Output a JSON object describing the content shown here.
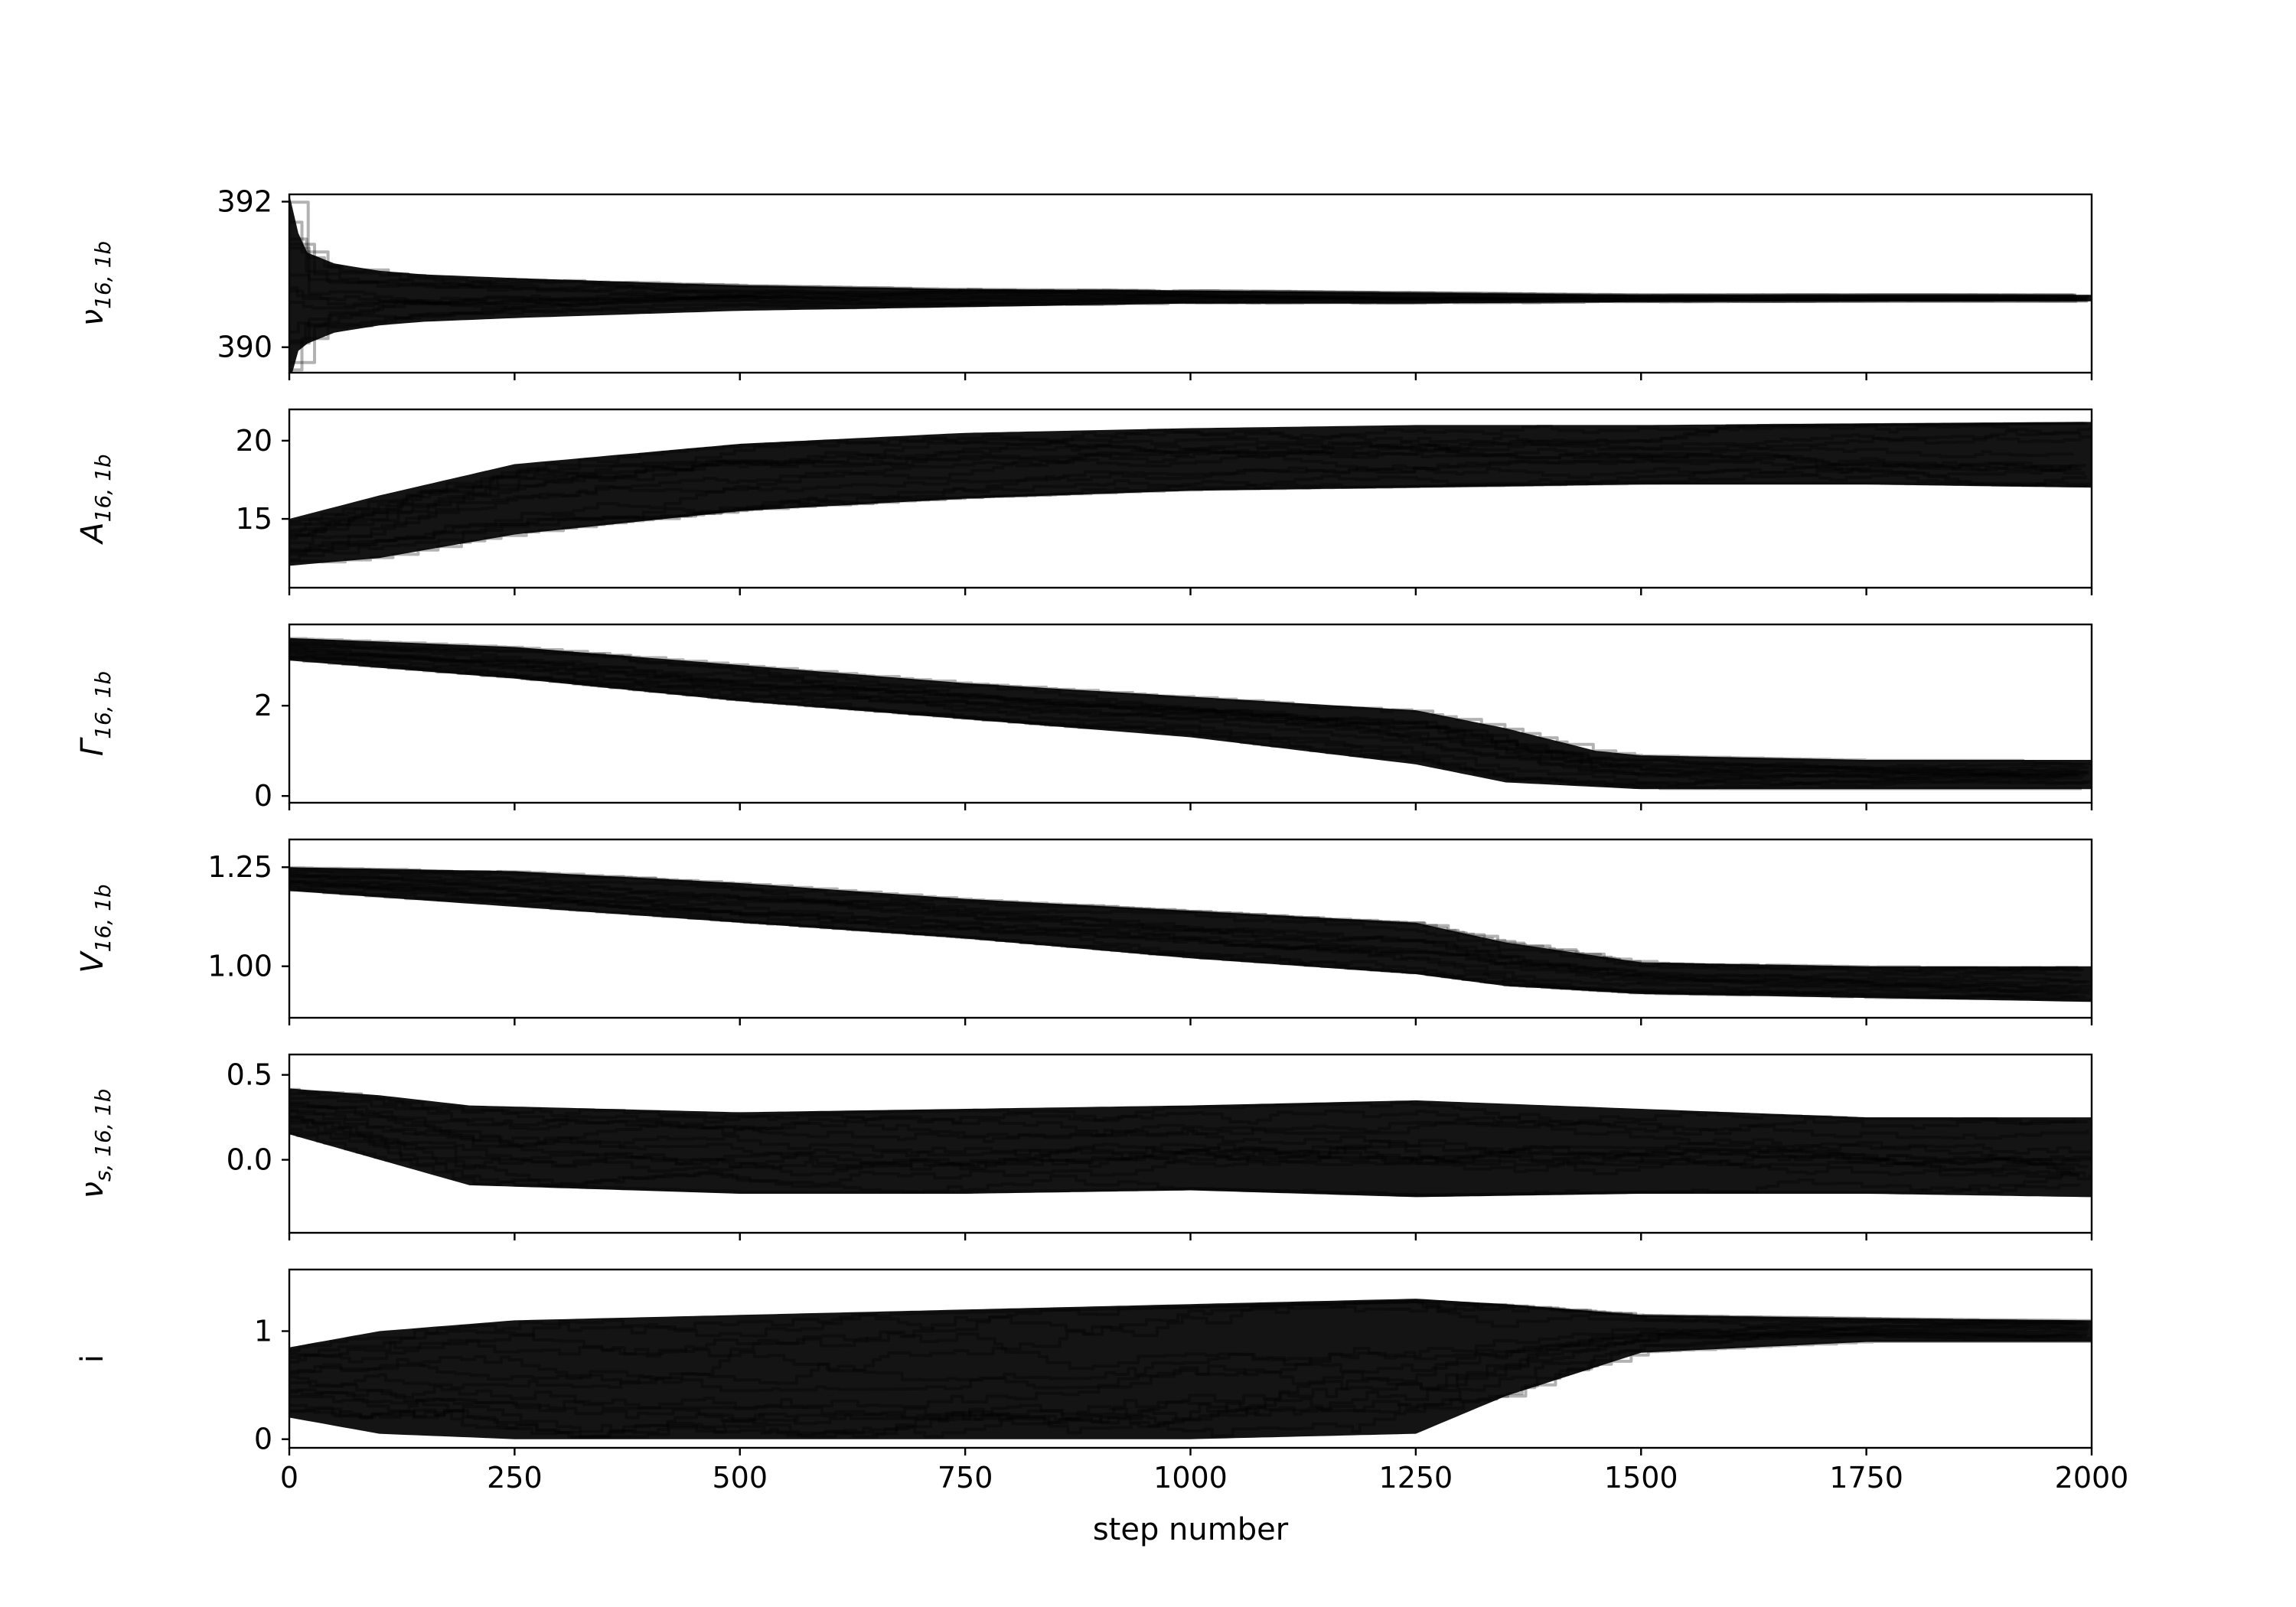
{
  "chart_data": {
    "type": "line",
    "layout": "stacked-subplots",
    "x": {
      "label": "step number",
      "range": [
        0,
        2000
      ],
      "ticks": [
        0,
        250,
        500,
        750,
        1000,
        1250,
        1500,
        1750,
        2000
      ],
      "tick_labels": [
        "0",
        "250",
        "500",
        "750",
        "1000",
        "1250",
        "1500",
        "1750",
        "2000"
      ]
    },
    "style": {
      "band_color": "#000000",
      "walker_color": "#000000",
      "walker_alpha": 0.3,
      "background": "#ffffff"
    },
    "panels": [
      {
        "ylabel": "ν16,1b",
        "ylabel_main": "ν",
        "ylabel_sub": "16, 1b",
        "ylim": [
          389.65,
          392.1
        ],
        "yticks": [
          390,
          392
        ],
        "ytick_labels": [
          "390",
          "392"
        ],
        "envelope": {
          "x": [
            0,
            5,
            20,
            50,
            100,
            150,
            250,
            500,
            750,
            1000,
            1250,
            1500,
            1750,
            2000
          ],
          "lower": [
            389.5,
            389.9,
            390.05,
            390.2,
            390.3,
            390.35,
            390.4,
            390.5,
            390.55,
            390.6,
            390.6,
            390.62,
            390.63,
            390.63
          ],
          "upper": [
            392.1,
            391.7,
            391.3,
            391.15,
            391.05,
            391.0,
            390.95,
            390.85,
            390.8,
            390.78,
            390.75,
            390.72,
            390.72,
            390.72
          ]
        },
        "center": {
          "x": [
            0,
            2000
          ],
          "y": [
            390.6,
            390.68
          ]
        }
      },
      {
        "ylabel": "A16,1b",
        "ylabel_main": "A",
        "ylabel_sub": "16, 1b",
        "ylim": [
          10.6,
          22.0
        ],
        "yticks": [
          15,
          20
        ],
        "ytick_labels": [
          "15",
          "20"
        ],
        "envelope": {
          "x": [
            0,
            100,
            250,
            500,
            750,
            1000,
            1250,
            1500,
            1750,
            2000
          ],
          "lower": [
            12.0,
            12.5,
            14.0,
            15.5,
            16.3,
            16.8,
            17.0,
            17.2,
            17.2,
            17.0
          ],
          "upper": [
            15.0,
            16.5,
            18.5,
            19.8,
            20.5,
            20.8,
            21.0,
            21.0,
            21.1,
            21.2
          ]
        },
        "center": {
          "x": [
            0,
            250,
            500,
            1000,
            1500,
            2000
          ],
          "y": [
            13.5,
            16.0,
            17.5,
            18.3,
            18.8,
            19.0
          ]
        }
      },
      {
        "ylabel": "Γ16,1b",
        "ylabel_main": "Γ",
        "ylabel_sub": "16, 1b",
        "ylim": [
          -0.15,
          3.8
        ],
        "yticks": [
          0,
          2
        ],
        "ytick_labels": [
          "0",
          "2"
        ],
        "envelope": {
          "x": [
            0,
            250,
            500,
            750,
            1000,
            1250,
            1350,
            1450,
            1500,
            1750,
            2000
          ],
          "lower": [
            3.0,
            2.6,
            2.1,
            1.7,
            1.3,
            0.7,
            0.3,
            0.2,
            0.15,
            0.15,
            0.15
          ],
          "upper": [
            3.5,
            3.3,
            2.9,
            2.5,
            2.2,
            1.9,
            1.5,
            1.0,
            0.9,
            0.8,
            0.8
          ]
        },
        "center": {
          "x": [
            0,
            500,
            1000,
            1350,
            1500,
            2000
          ],
          "y": [
            3.3,
            2.6,
            1.8,
            1.2,
            0.5,
            0.35
          ]
        }
      },
      {
        "ylabel": "V16,1b",
        "ylabel_main": "V",
        "ylabel_sub": "16, 1b",
        "ylim": [
          0.87,
          1.32
        ],
        "yticks": [
          1.0,
          1.25
        ],
        "ytick_labels": [
          "1.00",
          "1.25"
        ],
        "envelope": {
          "x": [
            0,
            250,
            500,
            750,
            1000,
            1250,
            1350,
            1500,
            1750,
            2000
          ],
          "lower": [
            1.19,
            1.15,
            1.11,
            1.07,
            1.02,
            0.98,
            0.95,
            0.93,
            0.92,
            0.91
          ],
          "upper": [
            1.25,
            1.24,
            1.21,
            1.17,
            1.14,
            1.11,
            1.06,
            1.01,
            1.0,
            1.0
          ]
        },
        "center": {
          "x": [
            0,
            500,
            1000,
            1350,
            1500,
            2000
          ],
          "y": [
            1.22,
            1.17,
            1.09,
            1.02,
            0.97,
            0.96
          ]
        }
      },
      {
        "ylabel": "νs,16,1b",
        "ylabel_main": "ν",
        "ylabel_sub": "s, 16, 1b",
        "ylim": [
          -0.43,
          0.62
        ],
        "yticks": [
          0.0,
          0.5
        ],
        "ytick_labels": [
          "0.0",
          "0.5"
        ],
        "envelope": {
          "x": [
            0,
            100,
            200,
            500,
            750,
            1000,
            1250,
            1500,
            1750,
            2000
          ],
          "lower": [
            0.15,
            0.0,
            -0.15,
            -0.2,
            -0.2,
            -0.18,
            -0.22,
            -0.2,
            -0.2,
            -0.22
          ],
          "upper": [
            0.42,
            0.38,
            0.32,
            0.28,
            0.3,
            0.32,
            0.35,
            0.3,
            0.25,
            0.25
          ]
        },
        "center": {
          "x": [
            0,
            200,
            500,
            1000,
            1500,
            2000
          ],
          "y": [
            0.3,
            0.08,
            0.02,
            0.05,
            0.03,
            0.02
          ]
        }
      },
      {
        "ylabel": "i",
        "ylabel_main": "i",
        "ylabel_sub": "",
        "ylim": [
          -0.08,
          1.57
        ],
        "yticks": [
          0,
          1
        ],
        "ytick_labels": [
          "0",
          "1"
        ],
        "envelope": {
          "x": [
            0,
            100,
            250,
            500,
            750,
            1000,
            1250,
            1350,
            1500,
            1750,
            2000
          ],
          "lower": [
            0.2,
            0.05,
            0.0,
            0.0,
            0.0,
            0.0,
            0.05,
            0.4,
            0.8,
            0.9,
            0.9
          ],
          "upper": [
            0.85,
            1.0,
            1.1,
            1.15,
            1.2,
            1.25,
            1.3,
            1.25,
            1.15,
            1.12,
            1.1
          ]
        },
        "center": {
          "x": [
            0,
            250,
            750,
            1250,
            1500,
            2000
          ],
          "y": [
            0.55,
            0.6,
            0.65,
            0.8,
            1.0,
            1.03
          ]
        }
      }
    ]
  }
}
